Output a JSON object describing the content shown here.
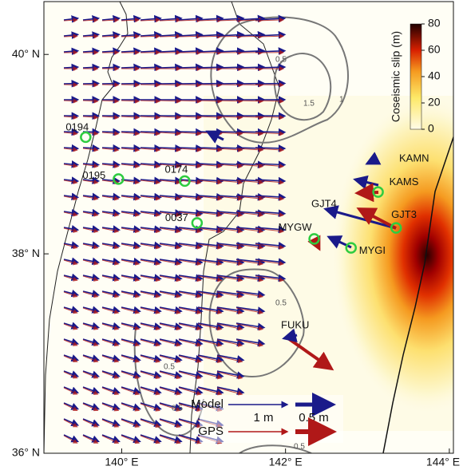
{
  "map": {
    "lon_axis": {
      "lim": [
        139.05,
        144.05
      ],
      "ticks": [
        {
          "value": 140,
          "label": "140° E"
        },
        {
          "value": 142,
          "label": "142° E"
        },
        {
          "value": 144,
          "label": "144° E"
        }
      ]
    },
    "lat_axis": {
      "lim": [
        36,
        40.53
      ],
      "ticks": [
        {
          "value": 36,
          "label": "36° N"
        },
        {
          "value": 38,
          "label": "38° N"
        },
        {
          "value": 40,
          "label": "40° N"
        }
      ]
    },
    "colorbar": {
      "title": "Coseismic slip (m)",
      "lim": [
        0,
        80
      ],
      "ticks": [
        0,
        20,
        40,
        60,
        80
      ]
    },
    "stations": [
      {
        "name": "0194",
        "lon": 139.56,
        "lat": 39.17
      },
      {
        "name": "0195",
        "lon": 139.96,
        "lat": 38.75
      },
      {
        "name": "0174",
        "lon": 140.77,
        "lat": 38.73
      },
      {
        "name": "0037",
        "lon": 140.92,
        "lat": 38.31
      },
      {
        "name": "MYGW",
        "lon": 142.35,
        "lat": 38.15
      },
      {
        "name": "MYGI",
        "lon": 142.8,
        "lat": 38.06
      },
      {
        "name": "GJT3",
        "lon": 143.35,
        "lat": 38.26
      },
      {
        "name": "KAMS",
        "lon": 143.13,
        "lat": 38.62
      }
    ],
    "other_labels": [
      "GJT4",
      "KAMN",
      "FUKU"
    ],
    "contour_labels": [
      "0.5",
      "1",
      "1.5",
      "0.5",
      "0.5",
      "0.5",
      "0.5"
    ],
    "legend": {
      "model": "Model",
      "gps": "GPS",
      "scale_land": "1 m",
      "scale_sea": "0.5 m"
    }
  }
}
